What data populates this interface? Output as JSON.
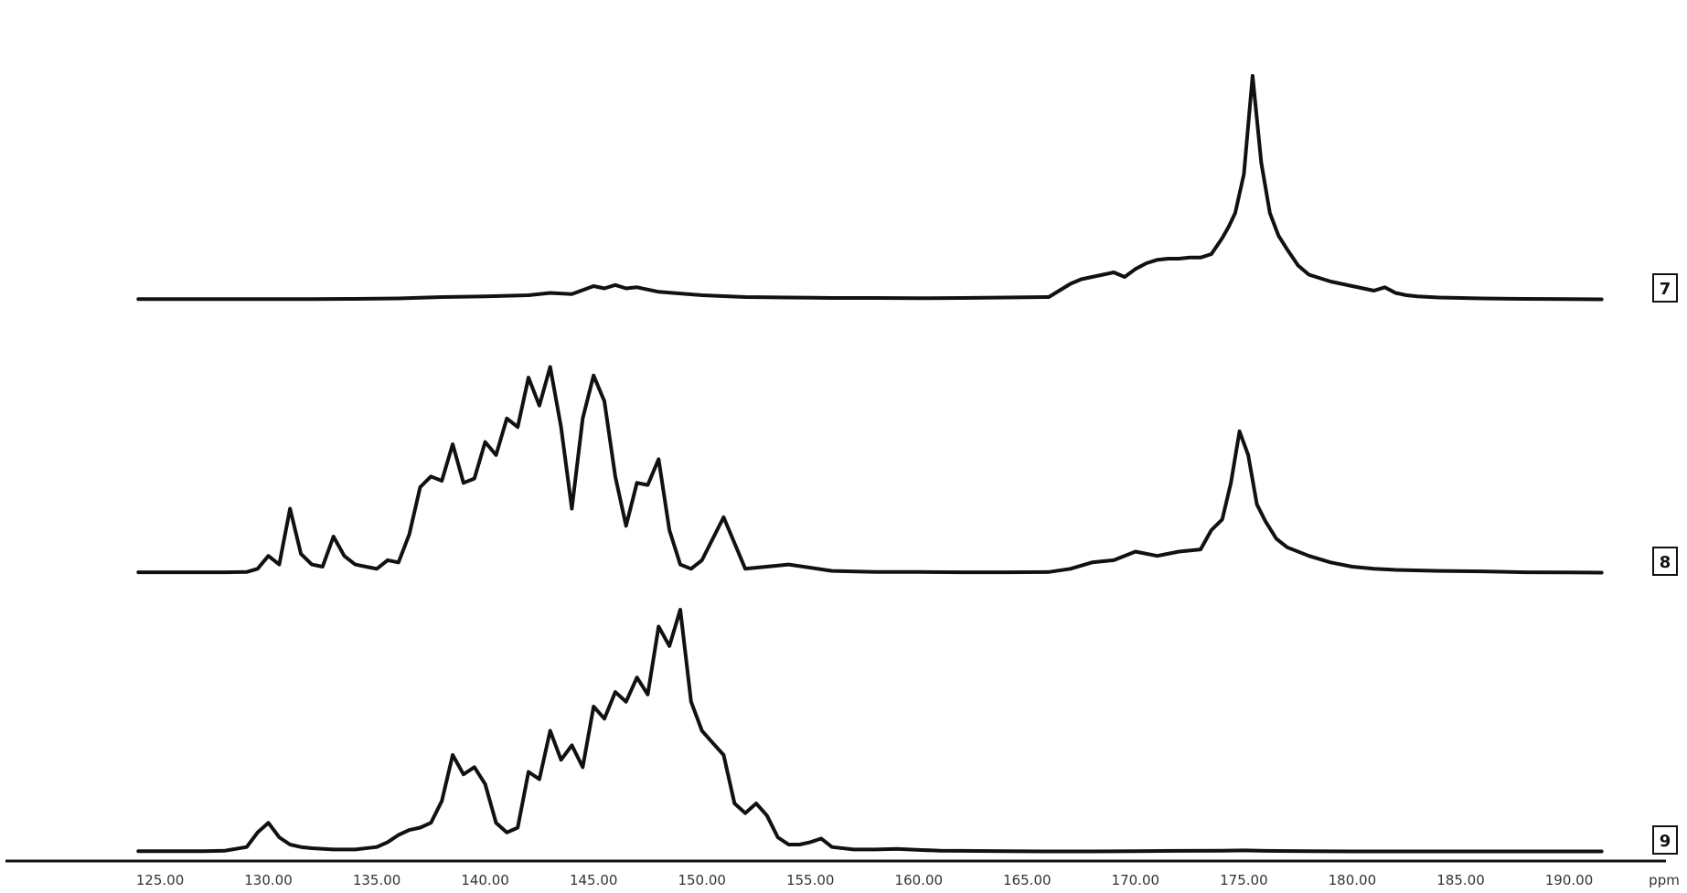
{
  "chart_data": {
    "type": "line",
    "title": "",
    "xlabel": "",
    "ylabel": "",
    "xlim": [
      125,
      190
    ],
    "x_tick_labels": [
      "125.00",
      "130.00",
      "135.00",
      "140.00",
      "145.00",
      "150.00",
      "155.00",
      "160.00",
      "165.00",
      "170.00",
      "175.00",
      "180.00",
      "185.00",
      "190.00"
    ],
    "x_unit_label": "ppm",
    "grid": false,
    "legend": "trace numbers at right end",
    "series": [
      {
        "name": "7",
        "x": [
          124.0,
          128,
          132,
          134,
          136,
          138,
          140,
          142,
          143,
          144,
          145,
          145.5,
          146,
          146.5,
          147,
          148,
          150,
          152,
          154,
          156,
          158,
          160,
          162,
          164,
          166,
          167,
          167.5,
          168,
          168.5,
          169,
          169.5,
          170,
          170.5,
          171,
          171.5,
          172,
          172.5,
          173,
          173.5,
          174,
          174.3,
          174.6,
          175,
          175.4,
          175.8,
          176.2,
          176.6,
          177,
          177.5,
          178,
          179,
          180,
          181,
          181.5,
          182,
          182.5,
          183,
          184,
          186,
          188,
          190,
          191.5
        ],
        "y": [
          0.003,
          0.003,
          0.003,
          0.004,
          0.006,
          0.012,
          0.015,
          0.02,
          0.03,
          0.025,
          0.06,
          0.05,
          0.065,
          0.05,
          0.055,
          0.035,
          0.02,
          0.012,
          0.01,
          0.008,
          0.008,
          0.007,
          0.008,
          0.01,
          0.012,
          0.07,
          0.09,
          0.1,
          0.11,
          0.12,
          0.1,
          0.135,
          0.16,
          0.175,
          0.18,
          0.18,
          0.185,
          0.185,
          0.2,
          0.27,
          0.32,
          0.38,
          0.55,
          0.98,
          0.6,
          0.38,
          0.28,
          0.22,
          0.15,
          0.11,
          0.08,
          0.06,
          0.04,
          0.055,
          0.03,
          0.02,
          0.015,
          0.01,
          0.006,
          0.004,
          0.003,
          0.002
        ]
      },
      {
        "name": "8",
        "x": [
          124.0,
          128,
          129,
          129.5,
          130,
          130.5,
          131,
          131.5,
          132,
          132.5,
          133,
          133.5,
          134,
          134.5,
          135,
          135.5,
          136,
          136.5,
          137,
          137.5,
          138,
          138.5,
          139,
          139.5,
          140,
          140.5,
          141,
          141.5,
          142,
          142.5,
          143,
          143.5,
          144,
          144.5,
          145,
          145.5,
          146,
          146.5,
          147,
          147.5,
          148,
          148.5,
          149,
          149.5,
          150,
          151,
          152,
          154,
          156,
          158,
          160,
          162,
          164,
          166,
          167,
          168,
          169,
          170,
          171,
          172,
          173,
          173.5,
          174,
          174.4,
          174.8,
          175.2,
          175.6,
          176,
          176.5,
          177,
          178,
          179,
          180,
          181,
          182,
          184,
          186,
          188,
          190,
          191.5
        ],
        "y": [
          0.004,
          0.004,
          0.005,
          0.02,
          0.08,
          0.04,
          0.3,
          0.09,
          0.04,
          0.03,
          0.17,
          0.08,
          0.04,
          0.03,
          0.02,
          0.06,
          0.05,
          0.18,
          0.4,
          0.45,
          0.43,
          0.6,
          0.42,
          0.44,
          0.61,
          0.55,
          0.72,
          0.68,
          0.91,
          0.78,
          0.96,
          0.68,
          0.3,
          0.72,
          0.92,
          0.8,
          0.45,
          0.22,
          0.42,
          0.41,
          0.53,
          0.2,
          0.04,
          0.02,
          0.06,
          0.26,
          0.02,
          0.04,
          0.01,
          0.005,
          0.005,
          0.004,
          0.004,
          0.005,
          0.02,
          0.05,
          0.06,
          0.1,
          0.08,
          0.1,
          0.11,
          0.2,
          0.25,
          0.42,
          0.66,
          0.55,
          0.32,
          0.24,
          0.16,
          0.12,
          0.08,
          0.05,
          0.03,
          0.02,
          0.015,
          0.01,
          0.008,
          0.004,
          0.003,
          0.002
        ]
      },
      {
        "name": "9",
        "x": [
          124.0,
          127,
          128,
          129,
          129.5,
          130,
          130.5,
          131,
          131.5,
          132,
          133,
          134,
          135,
          135.5,
          136,
          136.5,
          137,
          137.5,
          138,
          138.5,
          139,
          139.5,
          140,
          140.5,
          141,
          141.5,
          142,
          142.5,
          143,
          143.5,
          144,
          144.5,
          145,
          145.5,
          146,
          146.5,
          147,
          147.5,
          148,
          148.5,
          149,
          149.5,
          150,
          150.5,
          151,
          151.5,
          152,
          152.5,
          153,
          153.5,
          154,
          154.5,
          155,
          155.5,
          156,
          157,
          158,
          159,
          160,
          161,
          162,
          164,
          166,
          168,
          170,
          172,
          174,
          175,
          176,
          178,
          180,
          182,
          184,
          186,
          188,
          190,
          191.5
        ],
        "y": [
          0.003,
          0.003,
          0.005,
          0.02,
          0.08,
          0.12,
          0.06,
          0.03,
          0.02,
          0.015,
          0.01,
          0.01,
          0.02,
          0.04,
          0.07,
          0.09,
          0.1,
          0.12,
          0.21,
          0.4,
          0.32,
          0.35,
          0.28,
          0.12,
          0.08,
          0.1,
          0.33,
          0.3,
          0.5,
          0.38,
          0.44,
          0.35,
          0.6,
          0.55,
          0.66,
          0.62,
          0.72,
          0.65,
          0.93,
          0.85,
          1.0,
          0.62,
          0.5,
          0.45,
          0.4,
          0.2,
          0.16,
          0.2,
          0.15,
          0.06,
          0.03,
          0.03,
          0.04,
          0.055,
          0.02,
          0.01,
          0.01,
          0.012,
          0.008,
          0.005,
          0.004,
          0.003,
          0.002,
          0.002,
          0.003,
          0.004,
          0.005,
          0.006,
          0.004,
          0.003,
          0.002,
          0.002,
          0.002,
          0.002,
          0.002,
          0.002,
          0.002
        ]
      }
    ]
  }
}
